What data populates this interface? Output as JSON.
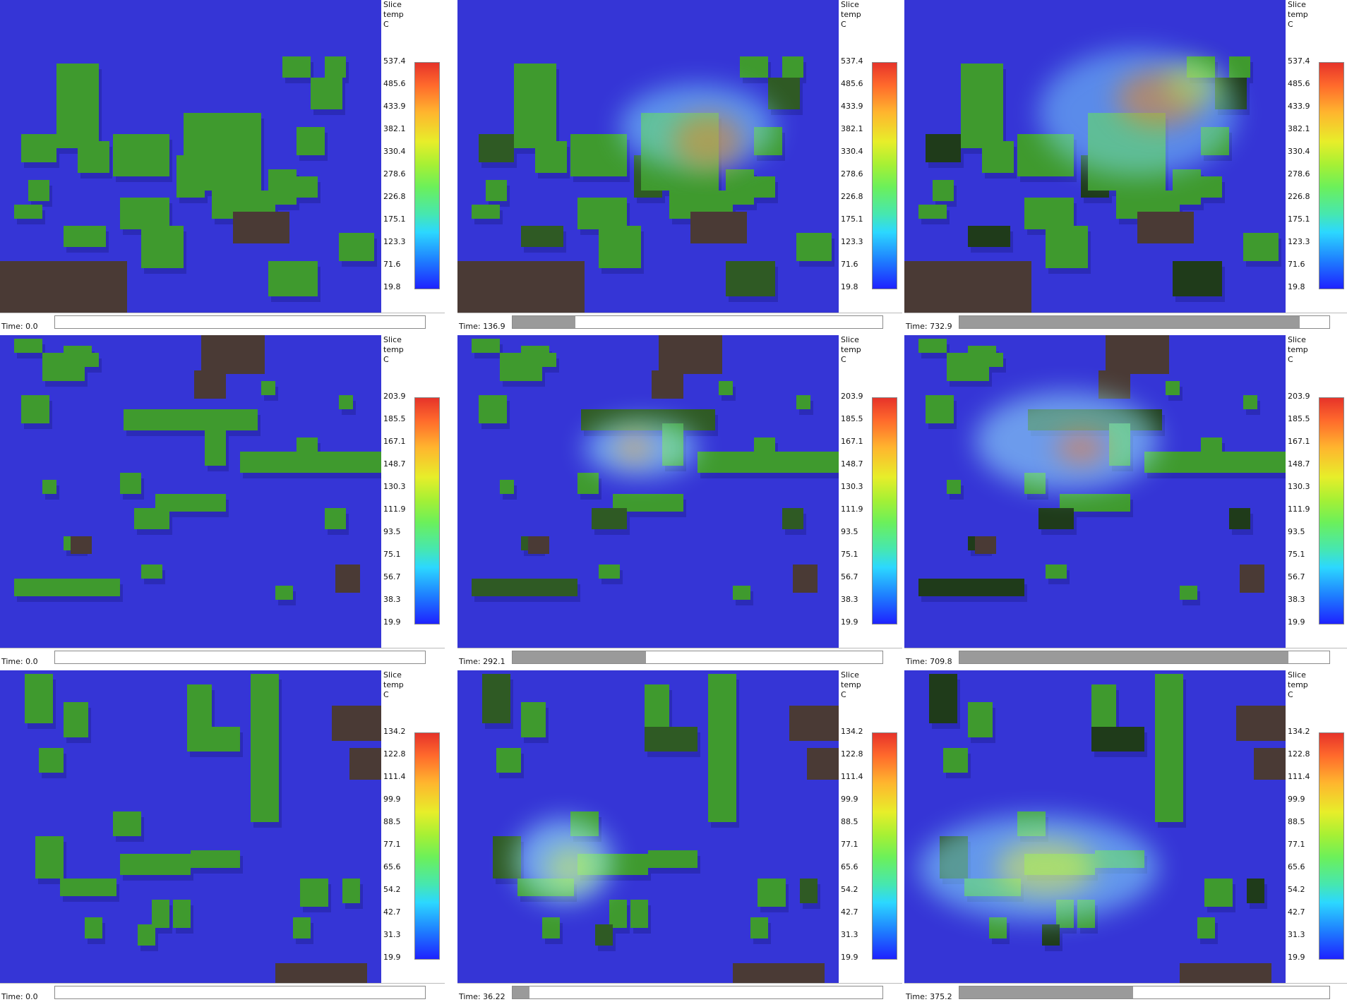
{
  "panels": [
    {
      "time": "Time: 0.0",
      "slider_fraction": 0.0,
      "legend": {
        "line1": "Slice",
        "line2": "temp",
        "line3": "C"
      },
      "ticks": [
        "537.4",
        "485.6",
        "433.9",
        "382.1",
        "330.4",
        "278.6",
        "226.8",
        "175.1",
        "123.3",
        "71.6",
        "19.8"
      ]
    },
    {
      "time": "Time: 136.9",
      "slider_fraction": 0.17,
      "legend": {
        "line1": "Slice",
        "line2": "temp",
        "line3": "C"
      },
      "ticks": [
        "537.4",
        "485.6",
        "433.9",
        "382.1",
        "330.4",
        "278.6",
        "226.8",
        "175.1",
        "123.3",
        "71.6",
        "19.8"
      ]
    },
    {
      "time": "Time: 732.9",
      "slider_fraction": 0.92,
      "legend": {
        "line1": "Slice",
        "line2": "temp",
        "line3": "C"
      },
      "ticks": [
        "537.4",
        "485.6",
        "433.9",
        "382.1",
        "330.4",
        "278.6",
        "226.8",
        "175.1",
        "123.3",
        "71.6",
        "19.8"
      ]
    },
    {
      "time": "Time: 0.0",
      "slider_fraction": 0.0,
      "legend": {
        "line1": "Slice",
        "line2": "temp",
        "line3": "C"
      },
      "ticks": [
        "203.9",
        "185.5",
        "167.1",
        "148.7",
        "130.3",
        "111.9",
        "93.5",
        "75.1",
        "56.7",
        "38.3",
        "19.9"
      ]
    },
    {
      "time": "Time: 292.1",
      "slider_fraction": 0.36,
      "legend": {
        "line1": "Slice",
        "line2": "temp",
        "line3": "C"
      },
      "ticks": [
        "203.9",
        "185.5",
        "167.1",
        "148.7",
        "130.3",
        "111.9",
        "93.5",
        "75.1",
        "56.7",
        "38.3",
        "19.9"
      ]
    },
    {
      "time": "Time: 709.8",
      "slider_fraction": 0.89,
      "legend": {
        "line1": "Slice",
        "line2": "temp",
        "line3": "C"
      },
      "ticks": [
        "203.9",
        "185.5",
        "167.1",
        "148.7",
        "130.3",
        "111.9",
        "93.5",
        "75.1",
        "56.7",
        "38.3",
        "19.9"
      ]
    },
    {
      "time": "Time: 0.0",
      "slider_fraction": 0.0,
      "legend": {
        "line1": "Slice",
        "line2": "temp",
        "line3": "C"
      },
      "ticks": [
        "134.2",
        "122.8",
        "111.4",
        "99.9",
        "88.5",
        "77.1",
        "65.6",
        "54.2",
        "42.7",
        "31.3",
        "19.9"
      ]
    },
    {
      "time": "Time: 36.22",
      "slider_fraction": 0.045,
      "legend": {
        "line1": "Slice",
        "line2": "temp",
        "line3": "C"
      },
      "ticks": [
        "134.2",
        "122.8",
        "111.4",
        "99.9",
        "88.5",
        "77.1",
        "65.6",
        "54.2",
        "42.7",
        "31.3",
        "19.9"
      ]
    },
    {
      "time": "Time: 375.2",
      "slider_fraction": 0.47,
      "legend": {
        "line1": "Slice",
        "line2": "temp",
        "line3": "C"
      },
      "ticks": [
        "134.2",
        "122.8",
        "111.4",
        "99.9",
        "88.5",
        "77.1",
        "65.6",
        "54.2",
        "42.7",
        "31.3",
        "19.9"
      ]
    }
  ],
  "colors": {
    "ground": "#3535d6",
    "building_top": "#3f9a2e",
    "building_side": "#2b2bb8",
    "brown_building": "#4a3a35",
    "slider_fill": "#9a9a9a"
  }
}
